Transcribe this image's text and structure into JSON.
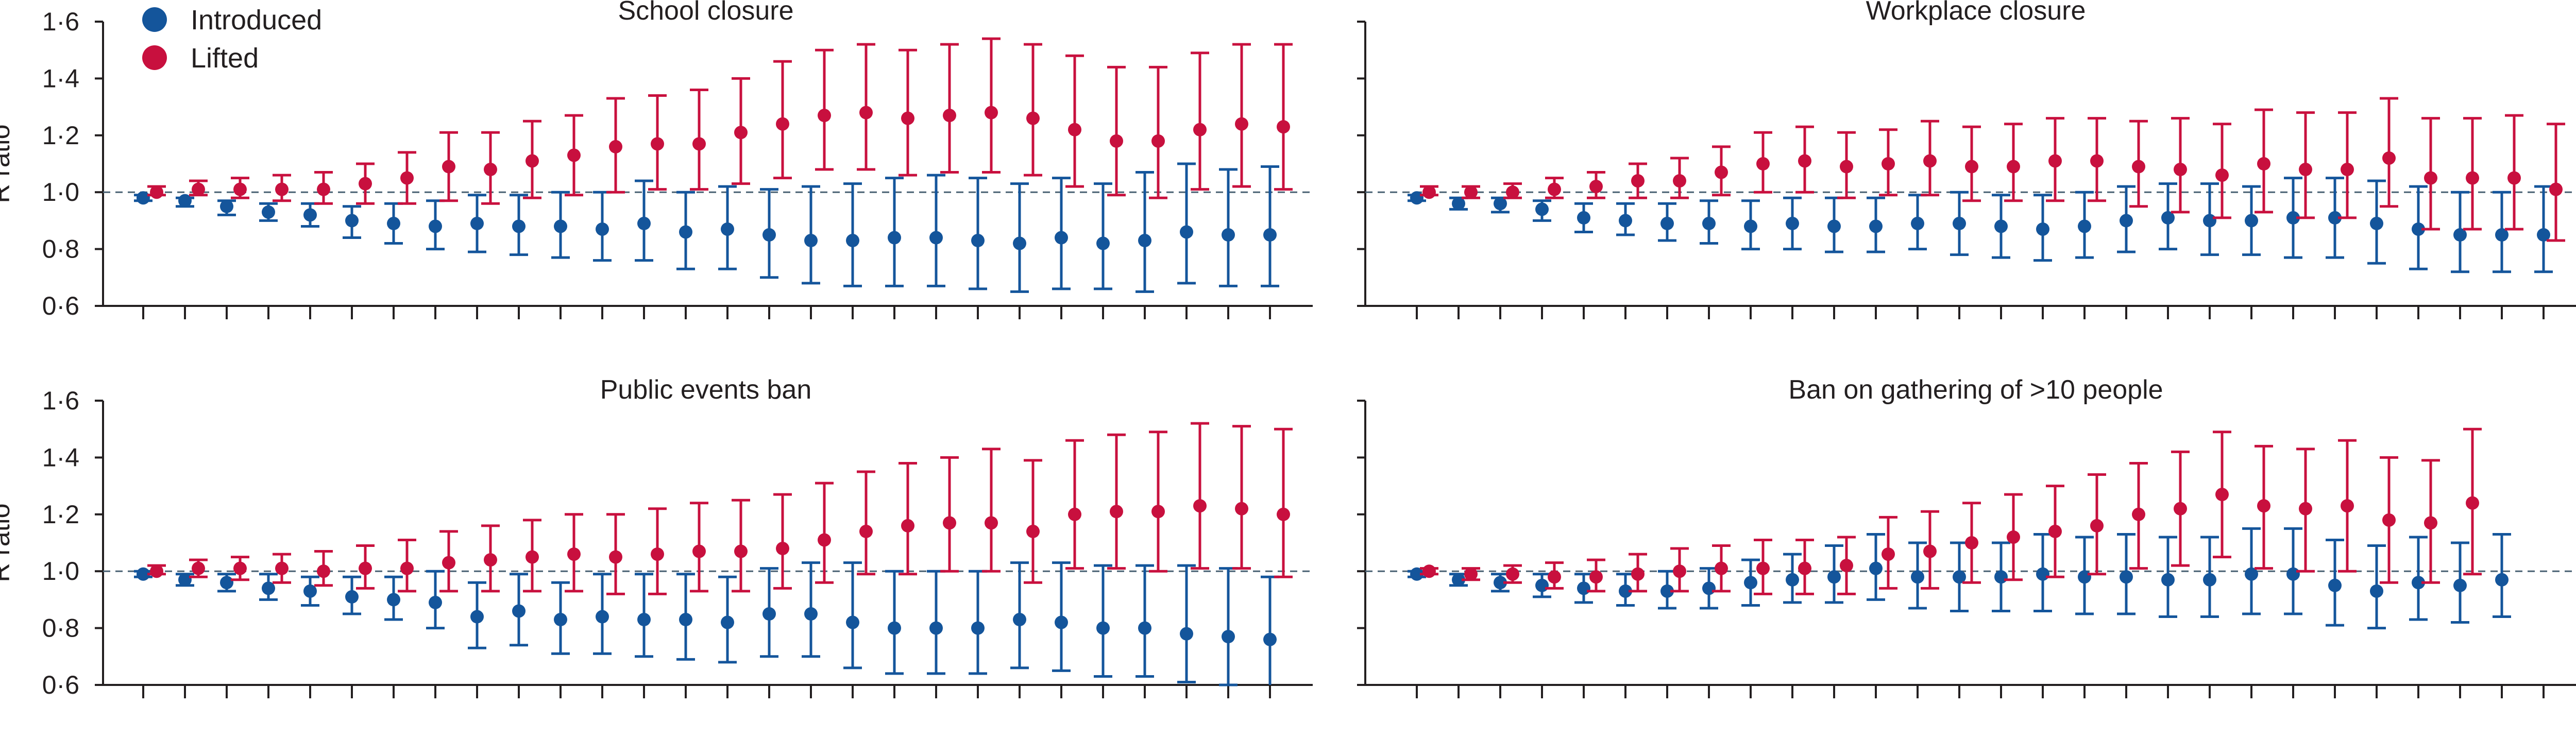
{
  "legend": {
    "position": "top-left",
    "items": [
      {
        "label": "Introduced",
        "color": "#14559b"
      },
      {
        "label": "Lifted",
        "color": "#c8103e"
      }
    ]
  },
  "chart_data": [
    {
      "type": "scatter",
      "title": "School closure",
      "xlabel": "",
      "ylabel": "R ratio",
      "ylim": [
        0.6,
        1.6
      ],
      "yticks": [
        "0·6",
        "0·8",
        "1·0",
        "1·2",
        "1·4",
        "1·6"
      ],
      "reference_line": 1.0,
      "grid": false,
      "series": [
        {
          "name": "Introduced",
          "color": "#14559b",
          "values": [
            0.98,
            0.97,
            0.95,
            0.93,
            0.92,
            0.9,
            0.89,
            0.88,
            0.89,
            0.88,
            0.88,
            0.87,
            0.89,
            0.86,
            0.87,
            0.85,
            0.83,
            0.83,
            0.84,
            0.84,
            0.83,
            0.82,
            0.84,
            0.82,
            0.83,
            0.86,
            0.85,
            0.85
          ],
          "lower": [
            0.97,
            0.95,
            0.92,
            0.9,
            0.88,
            0.84,
            0.82,
            0.8,
            0.79,
            0.78,
            0.77,
            0.76,
            0.76,
            0.73,
            0.73,
            0.7,
            0.68,
            0.67,
            0.67,
            0.67,
            0.66,
            0.65,
            0.66,
            0.66,
            0.65,
            0.68,
            0.67,
            0.67
          ],
          "upper": [
            0.99,
            0.98,
            0.97,
            0.96,
            0.96,
            0.95,
            0.96,
            0.97,
            0.99,
            0.99,
            1.0,
            1.0,
            1.04,
            1.0,
            1.02,
            1.01,
            1.02,
            1.03,
            1.05,
            1.06,
            1.05,
            1.03,
            1.05,
            1.03,
            1.07,
            1.1,
            1.08,
            1.09
          ]
        },
        {
          "name": "Lifted",
          "color": "#c8103e",
          "values": [
            1.0,
            1.01,
            1.01,
            1.01,
            1.01,
            1.03,
            1.05,
            1.09,
            1.08,
            1.11,
            1.13,
            1.16,
            1.17,
            1.17,
            1.21,
            1.24,
            1.27,
            1.28,
            1.26,
            1.27,
            1.28,
            1.26,
            1.22,
            1.18,
            1.18,
            1.22,
            1.24,
            1.23
          ],
          "lower": [
            0.99,
            0.99,
            0.98,
            0.97,
            0.96,
            0.96,
            0.96,
            0.97,
            0.96,
            0.98,
            0.99,
            1.0,
            1.01,
            1.01,
            1.03,
            1.05,
            1.08,
            1.08,
            1.06,
            1.07,
            1.07,
            1.06,
            1.02,
            0.99,
            0.98,
            1.01,
            1.02,
            1.01
          ],
          "upper": [
            1.02,
            1.04,
            1.05,
            1.06,
            1.07,
            1.1,
            1.14,
            1.21,
            1.21,
            1.25,
            1.27,
            1.33,
            1.34,
            1.36,
            1.4,
            1.46,
            1.5,
            1.52,
            1.5,
            1.52,
            1.54,
            1.52,
            1.48,
            1.44,
            1.44,
            1.49,
            1.52,
            1.52
          ]
        }
      ]
    },
    {
      "type": "scatter",
      "title": "Workplace closure",
      "xlabel": "",
      "ylabel": "",
      "ylim": [
        0.6,
        1.6
      ],
      "reference_line": 1.0,
      "grid": false,
      "series": [
        {
          "name": "Introduced",
          "color": "#14559b",
          "values": [
            0.98,
            0.96,
            0.96,
            0.94,
            0.91,
            0.9,
            0.89,
            0.89,
            0.88,
            0.89,
            0.88,
            0.88,
            0.89,
            0.89,
            0.88,
            0.87,
            0.88,
            0.9,
            0.91,
            0.9,
            0.9,
            0.91,
            0.91,
            0.89,
            0.87,
            0.85,
            0.85,
            0.85,
            0.86
          ],
          "lower": [
            0.97,
            0.94,
            0.93,
            0.9,
            0.86,
            0.85,
            0.83,
            0.82,
            0.8,
            0.8,
            0.79,
            0.79,
            0.8,
            0.78,
            0.77,
            0.76,
            0.77,
            0.79,
            0.8,
            0.78,
            0.78,
            0.77,
            0.77,
            0.75,
            0.73,
            0.72,
            0.72,
            0.72,
            0.73
          ],
          "upper": [
            0.99,
            0.98,
            0.98,
            0.97,
            0.96,
            0.96,
            0.96,
            0.97,
            0.97,
            0.98,
            0.98,
            0.98,
            0.99,
            1.0,
            0.99,
            0.99,
            1.0,
            1.02,
            1.03,
            1.03,
            1.02,
            1.05,
            1.05,
            1.04,
            1.02,
            1.0,
            1.0,
            1.02,
            1.02
          ]
        },
        {
          "name": "Lifted",
          "color": "#c8103e",
          "values": [
            1.0,
            1.0,
            1.0,
            1.01,
            1.02,
            1.04,
            1.04,
            1.07,
            1.1,
            1.11,
            1.09,
            1.1,
            1.11,
            1.09,
            1.09,
            1.11,
            1.11,
            1.09,
            1.08,
            1.06,
            1.1,
            1.08,
            1.08,
            1.12,
            1.05,
            1.05,
            1.05,
            1.01,
            1.01
          ],
          "lower": [
            0.99,
            0.98,
            0.98,
            0.98,
            0.98,
            0.98,
            0.98,
            0.99,
            1.0,
            1.0,
            0.98,
            0.99,
            0.99,
            0.97,
            0.97,
            0.97,
            0.97,
            0.95,
            0.93,
            0.91,
            0.93,
            0.91,
            0.91,
            0.95,
            0.87,
            0.87,
            0.87,
            0.83,
            0.83
          ],
          "upper": [
            1.02,
            1.02,
            1.03,
            1.05,
            1.07,
            1.1,
            1.12,
            1.16,
            1.21,
            1.23,
            1.21,
            1.22,
            1.25,
            1.23,
            1.24,
            1.26,
            1.26,
            1.25,
            1.26,
            1.24,
            1.29,
            1.28,
            1.28,
            1.33,
            1.26,
            1.26,
            1.27,
            1.24,
            1.24
          ]
        }
      ]
    },
    {
      "type": "scatter",
      "title": "Public events ban",
      "xlabel": "",
      "ylabel": "R ratio",
      "ylim": [
        0.6,
        1.6
      ],
      "yticks": [
        "0·6",
        "0·8",
        "1·0",
        "1·2",
        "1·4",
        "1·6"
      ],
      "reference_line": 1.0,
      "grid": false,
      "series": [
        {
          "name": "Introduced",
          "color": "#14559b",
          "values": [
            0.99,
            0.97,
            0.96,
            0.94,
            0.93,
            0.91,
            0.9,
            0.89,
            0.84,
            0.86,
            0.83,
            0.84,
            0.83,
            0.83,
            0.82,
            0.85,
            0.85,
            0.82,
            0.8,
            0.8,
            0.8,
            0.83,
            0.82,
            0.8,
            0.8,
            0.78,
            0.77,
            0.76
          ],
          "lower": [
            0.98,
            0.95,
            0.93,
            0.9,
            0.88,
            0.85,
            0.83,
            0.8,
            0.73,
            0.74,
            0.71,
            0.71,
            0.7,
            0.69,
            0.68,
            0.7,
            0.7,
            0.66,
            0.64,
            0.64,
            0.64,
            0.66,
            0.65,
            0.63,
            0.63,
            0.61,
            0.6,
            0.59
          ],
          "upper": [
            1.0,
            0.99,
            0.99,
            0.99,
            0.98,
            0.98,
            0.98,
            1.0,
            0.96,
            0.99,
            0.96,
            0.99,
            0.99,
            0.99,
            0.98,
            1.01,
            1.03,
            1.03,
            1.0,
            1.0,
            1.0,
            1.03,
            1.03,
            1.02,
            1.02,
            1.02,
            1.01,
            0.98
          ]
        },
        {
          "name": "Lifted",
          "color": "#c8103e",
          "values": [
            1.0,
            1.01,
            1.01,
            1.01,
            1.0,
            1.01,
            1.01,
            1.03,
            1.04,
            1.05,
            1.06,
            1.05,
            1.06,
            1.07,
            1.07,
            1.08,
            1.11,
            1.14,
            1.16,
            1.17,
            1.17,
            1.14,
            1.2,
            1.21,
            1.21,
            1.23,
            1.22,
            1.2
          ],
          "lower": [
            0.99,
            0.98,
            0.97,
            0.96,
            0.95,
            0.94,
            0.93,
            0.93,
            0.93,
            0.93,
            0.93,
            0.92,
            0.92,
            0.93,
            0.93,
            0.94,
            0.96,
            0.99,
            0.99,
            1.0,
            1.0,
            0.96,
            1.01,
            1.01,
            1.0,
            1.01,
            1.01,
            0.98
          ],
          "upper": [
            1.02,
            1.04,
            1.05,
            1.06,
            1.07,
            1.09,
            1.11,
            1.14,
            1.16,
            1.18,
            1.2,
            1.2,
            1.22,
            1.24,
            1.25,
            1.27,
            1.31,
            1.35,
            1.38,
            1.4,
            1.43,
            1.39,
            1.46,
            1.48,
            1.49,
            1.52,
            1.51,
            1.5
          ]
        }
      ]
    },
    {
      "type": "scatter",
      "title": "Ban on gathering of >10 people",
      "xlabel": "",
      "ylabel": "",
      "ylim": [
        0.6,
        1.6
      ],
      "reference_line": 1.0,
      "grid": false,
      "series": [
        {
          "name": "Introduced",
          "color": "#14559b",
          "values": [
            0.99,
            0.97,
            0.96,
            0.95,
            0.94,
            0.93,
            0.93,
            0.94,
            0.96,
            0.97,
            0.98,
            1.01,
            0.98,
            0.98,
            0.98,
            0.99,
            0.98,
            0.98,
            0.97,
            0.97,
            0.99,
            0.99,
            0.95,
            0.93,
            0.96,
            0.95,
            0.97
          ],
          "lower": [
            0.98,
            0.95,
            0.93,
            0.91,
            0.89,
            0.88,
            0.87,
            0.87,
            0.88,
            0.89,
            0.89,
            0.9,
            0.87,
            0.86,
            0.86,
            0.86,
            0.85,
            0.85,
            0.84,
            0.84,
            0.85,
            0.85,
            0.81,
            0.8,
            0.83,
            0.82,
            0.84
          ],
          "upper": [
            1.0,
            0.99,
            0.99,
            0.99,
            0.99,
            0.99,
            1.0,
            1.01,
            1.04,
            1.06,
            1.09,
            1.13,
            1.1,
            1.1,
            1.1,
            1.13,
            1.12,
            1.13,
            1.12,
            1.12,
            1.15,
            1.15,
            1.11,
            1.09,
            1.12,
            1.1,
            1.13
          ]
        },
        {
          "name": "Lifted",
          "color": "#c8103e",
          "values": [
            1.0,
            0.99,
            0.99,
            0.98,
            0.98,
            0.99,
            1.0,
            1.01,
            1.01,
            1.01,
            1.02,
            1.06,
            1.07,
            1.1,
            1.12,
            1.14,
            1.16,
            1.2,
            1.22,
            1.27,
            1.23,
            1.22,
            1.23,
            1.18,
            1.17,
            1.24
          ],
          "lower": [
            0.99,
            0.97,
            0.96,
            0.94,
            0.93,
            0.93,
            0.93,
            0.93,
            0.92,
            0.92,
            0.92,
            0.94,
            0.94,
            0.96,
            0.97,
            0.98,
            0.99,
            1.01,
            1.02,
            1.05,
            1.01,
            1.0,
            1.0,
            0.96,
            0.96,
            0.99
          ],
          "upper": [
            1.01,
            1.01,
            1.02,
            1.03,
            1.04,
            1.06,
            1.08,
            1.09,
            1.11,
            1.11,
            1.12,
            1.19,
            1.21,
            1.24,
            1.27,
            1.3,
            1.34,
            1.38,
            1.42,
            1.49,
            1.44,
            1.43,
            1.46,
            1.4,
            1.39,
            1.5
          ]
        }
      ]
    }
  ]
}
